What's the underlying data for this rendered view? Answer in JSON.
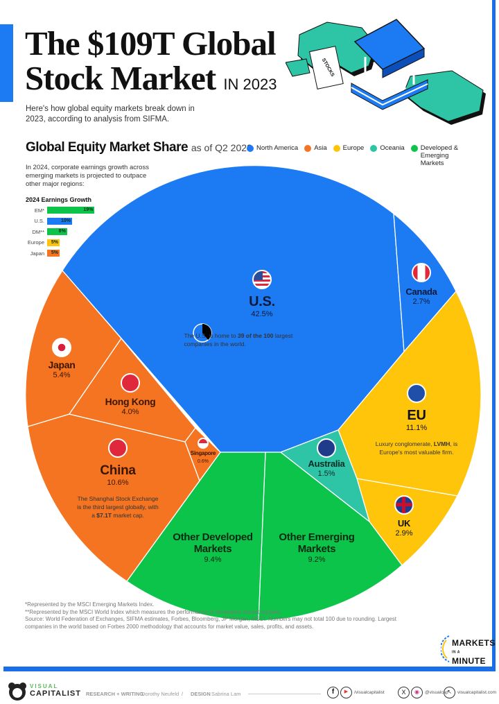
{
  "header": {
    "title_line1": "The $109T Global",
    "title_line2": "Stock Market",
    "title_suffix": "IN 2023",
    "subtitle": "Here's how global equity markets break down in 2023, according to analysis from SIFMA."
  },
  "chart_data": {
    "type": "pie",
    "title": "Global Equity Market Share",
    "subtitle": "as of Q2 2023",
    "unit": "%",
    "legend": [
      {
        "name": "North America",
        "color": "#1c7af2"
      },
      {
        "name": "Asia",
        "color": "#f47421"
      },
      {
        "name": "Europe",
        "color": "#ffc50b"
      },
      {
        "name": "Oceania",
        "color": "#2ec4a6"
      },
      {
        "name": "Developed & Emerging Markets",
        "color": "#0dc44a"
      }
    ],
    "legend_placement": "top",
    "slices": [
      {
        "name": "U.S.",
        "value": 42.5,
        "label": "42.5%",
        "group": "North America",
        "note_pre": "The U.S. is home to ",
        "note_bold": "39 of the 100",
        "note_post": " largest companies in the world."
      },
      {
        "name": "Canada",
        "value": 2.7,
        "label": "2.7%",
        "group": "North America"
      },
      {
        "name": "EU",
        "value": 11.1,
        "label": "11.1%",
        "group": "Europe",
        "note_pre": "Luxury conglomerate, ",
        "note_bold": "LVMH",
        "note_post": ", is Europe's most valuable firm."
      },
      {
        "name": "UK",
        "value": 2.9,
        "label": "2.9%",
        "group": "Europe"
      },
      {
        "name": "Other Emerging Markets",
        "value": 9.2,
        "label": "9.2%",
        "group": "Developed & Emerging Markets"
      },
      {
        "name": "Other Developed Markets",
        "value": 9.4,
        "label": "9.4%",
        "group": "Developed & Emerging Markets"
      },
      {
        "name": "China",
        "value": 10.6,
        "label": "10.6%",
        "group": "Asia",
        "note_pre": "The Shanghai Stock Exchange is the third largest globally, with a ",
        "note_bold": "$7.1T",
        "note_post": " market cap."
      },
      {
        "name": "Japan",
        "value": 5.4,
        "label": "5.4%",
        "group": "Asia"
      },
      {
        "name": "Hong Kong",
        "value": 4.0,
        "label": "4.0%",
        "group": "Asia"
      },
      {
        "name": "Singapore",
        "value": 0.6,
        "label": "0.6%",
        "group": "Asia"
      },
      {
        "name": "Australia",
        "value": 1.5,
        "label": "1.5%",
        "group": "Oceania"
      }
    ],
    "us_top100_companies": {
      "value": 39,
      "total": 100
    }
  },
  "earnings": {
    "intro": "In 2024, corporate earnings growth across emerging markets is projected to outpace other major regions:",
    "chart_data": {
      "type": "bar",
      "title": "2024 Earnings Growth",
      "orientation": "horizontal",
      "categories": [
        "EM*",
        "U.S.",
        "DM**",
        "Europe",
        "Japan"
      ],
      "values": [
        19,
        10,
        8,
        5,
        5
      ],
      "labels": [
        "19%",
        "10%",
        "8%",
        "5%",
        "5%"
      ],
      "colors": [
        "#0dc44a",
        "#1c7af2",
        "#0dc44a",
        "#ffc50b",
        "#f47421"
      ]
    }
  },
  "footnotes": [
    "*Represented by the MSCI Emerging Markets Index.",
    "**Represented by the MSCI World Index which measures the performance of developed market equities.",
    "Source: World Federation of Exchanges, SIFMA estimates, Forbes, Bloomberg, JP Morgan, MSCI. Numbers may not total 100 due to rounding. Largest companies in the world based on Forbes 2000 methodology that accounts for market value, sales, profits, and assets."
  ],
  "illustration": {
    "document_label": "STOCKS"
  },
  "series_logo": {
    "line1": "MARKETS",
    "line2": "IN A",
    "line3": "MINUTE"
  },
  "footer": {
    "brand_top": "VISUAL",
    "brand_bottom": "CAPITALIST",
    "research_label": "RESEARCH + WRITING",
    "research_name": "Dorothy Neufeld",
    "sep": "/",
    "design_label": "DESIGN",
    "design_name": "Sabrina Lam",
    "handle_fb_yt": "/visualcapitalist",
    "handle_x_ig": "@visualcap",
    "website": "visualcapitalist.com"
  }
}
